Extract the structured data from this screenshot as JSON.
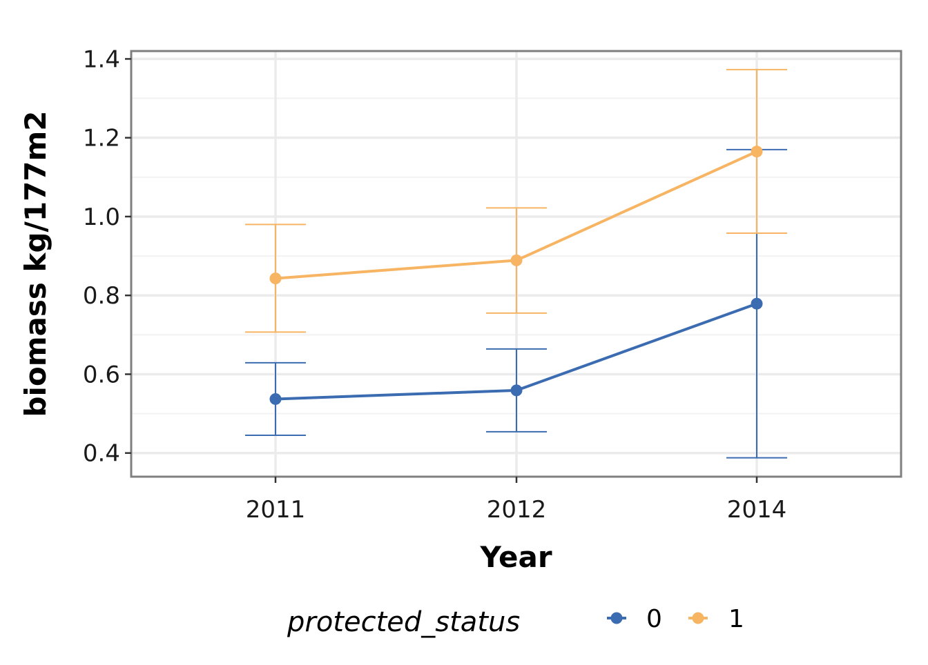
{
  "chart_data": {
    "type": "line",
    "xlabel": "Year",
    "ylabel": "biomass kg/177m2",
    "categories": [
      "2011",
      "2012",
      "2014"
    ],
    "ylim": [
      0.34,
      1.42
    ],
    "yticks": [
      "0.4",
      "0.6",
      "0.8",
      "1.0",
      "1.2",
      "1.4"
    ],
    "yticks_values": [
      0.4,
      0.6,
      0.8,
      1.0,
      1.2,
      1.4
    ],
    "grid": true,
    "legend": {
      "title": "protected_status",
      "position": "bottom"
    },
    "series": [
      {
        "name": "0",
        "color": "#3b6bb0",
        "values": [
          0.537,
          0.559,
          0.779
        ],
        "lower": [
          0.445,
          0.454,
          0.388
        ],
        "upper": [
          0.629,
          0.664,
          1.17
        ]
      },
      {
        "name": "1",
        "color": "#f7b462",
        "values": [
          0.843,
          0.889,
          1.165
        ],
        "lower": [
          0.707,
          0.755,
          0.958
        ],
        "upper": [
          0.98,
          1.022,
          1.373
        ]
      }
    ]
  }
}
